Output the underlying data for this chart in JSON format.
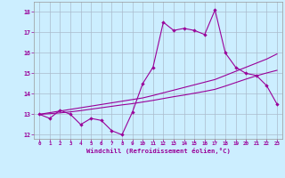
{
  "x": [
    0,
    1,
    2,
    3,
    4,
    5,
    6,
    7,
    8,
    9,
    10,
    11,
    12,
    13,
    14,
    15,
    16,
    17,
    18,
    19,
    20,
    21,
    22,
    23
  ],
  "y_main": [
    13.0,
    12.8,
    13.2,
    13.0,
    12.5,
    12.8,
    12.7,
    12.2,
    12.0,
    13.1,
    14.5,
    15.3,
    17.5,
    17.1,
    17.2,
    17.1,
    16.9,
    18.1,
    16.0,
    15.3,
    15.0,
    14.9,
    14.4,
    13.5
  ],
  "y_linear": [
    13.0,
    13.08,
    13.16,
    13.24,
    13.32,
    13.4,
    13.48,
    13.56,
    13.64,
    13.72,
    13.8,
    13.92,
    14.05,
    14.18,
    14.31,
    14.44,
    14.57,
    14.7,
    14.9,
    15.1,
    15.3,
    15.5,
    15.7,
    15.95
  ],
  "y_curve": [
    13.0,
    13.03,
    13.07,
    13.12,
    13.18,
    13.25,
    13.32,
    13.39,
    13.46,
    13.52,
    13.6,
    13.68,
    13.77,
    13.86,
    13.94,
    14.03,
    14.12,
    14.22,
    14.38,
    14.55,
    14.72,
    14.88,
    15.02,
    15.15
  ],
  "line_color": "#990099",
  "bg_color": "#cceeff",
  "grid_color": "#aabbcc",
  "xlabel": "Windchill (Refroidissement éolien,°C)",
  "ylim": [
    11.8,
    18.5
  ],
  "xlim": [
    -0.5,
    23.5
  ],
  "yticks": [
    12,
    13,
    14,
    15,
    16,
    17,
    18
  ],
  "xticks": [
    0,
    1,
    2,
    3,
    4,
    5,
    6,
    7,
    8,
    9,
    10,
    11,
    12,
    13,
    14,
    15,
    16,
    17,
    18,
    19,
    20,
    21,
    22,
    23
  ]
}
